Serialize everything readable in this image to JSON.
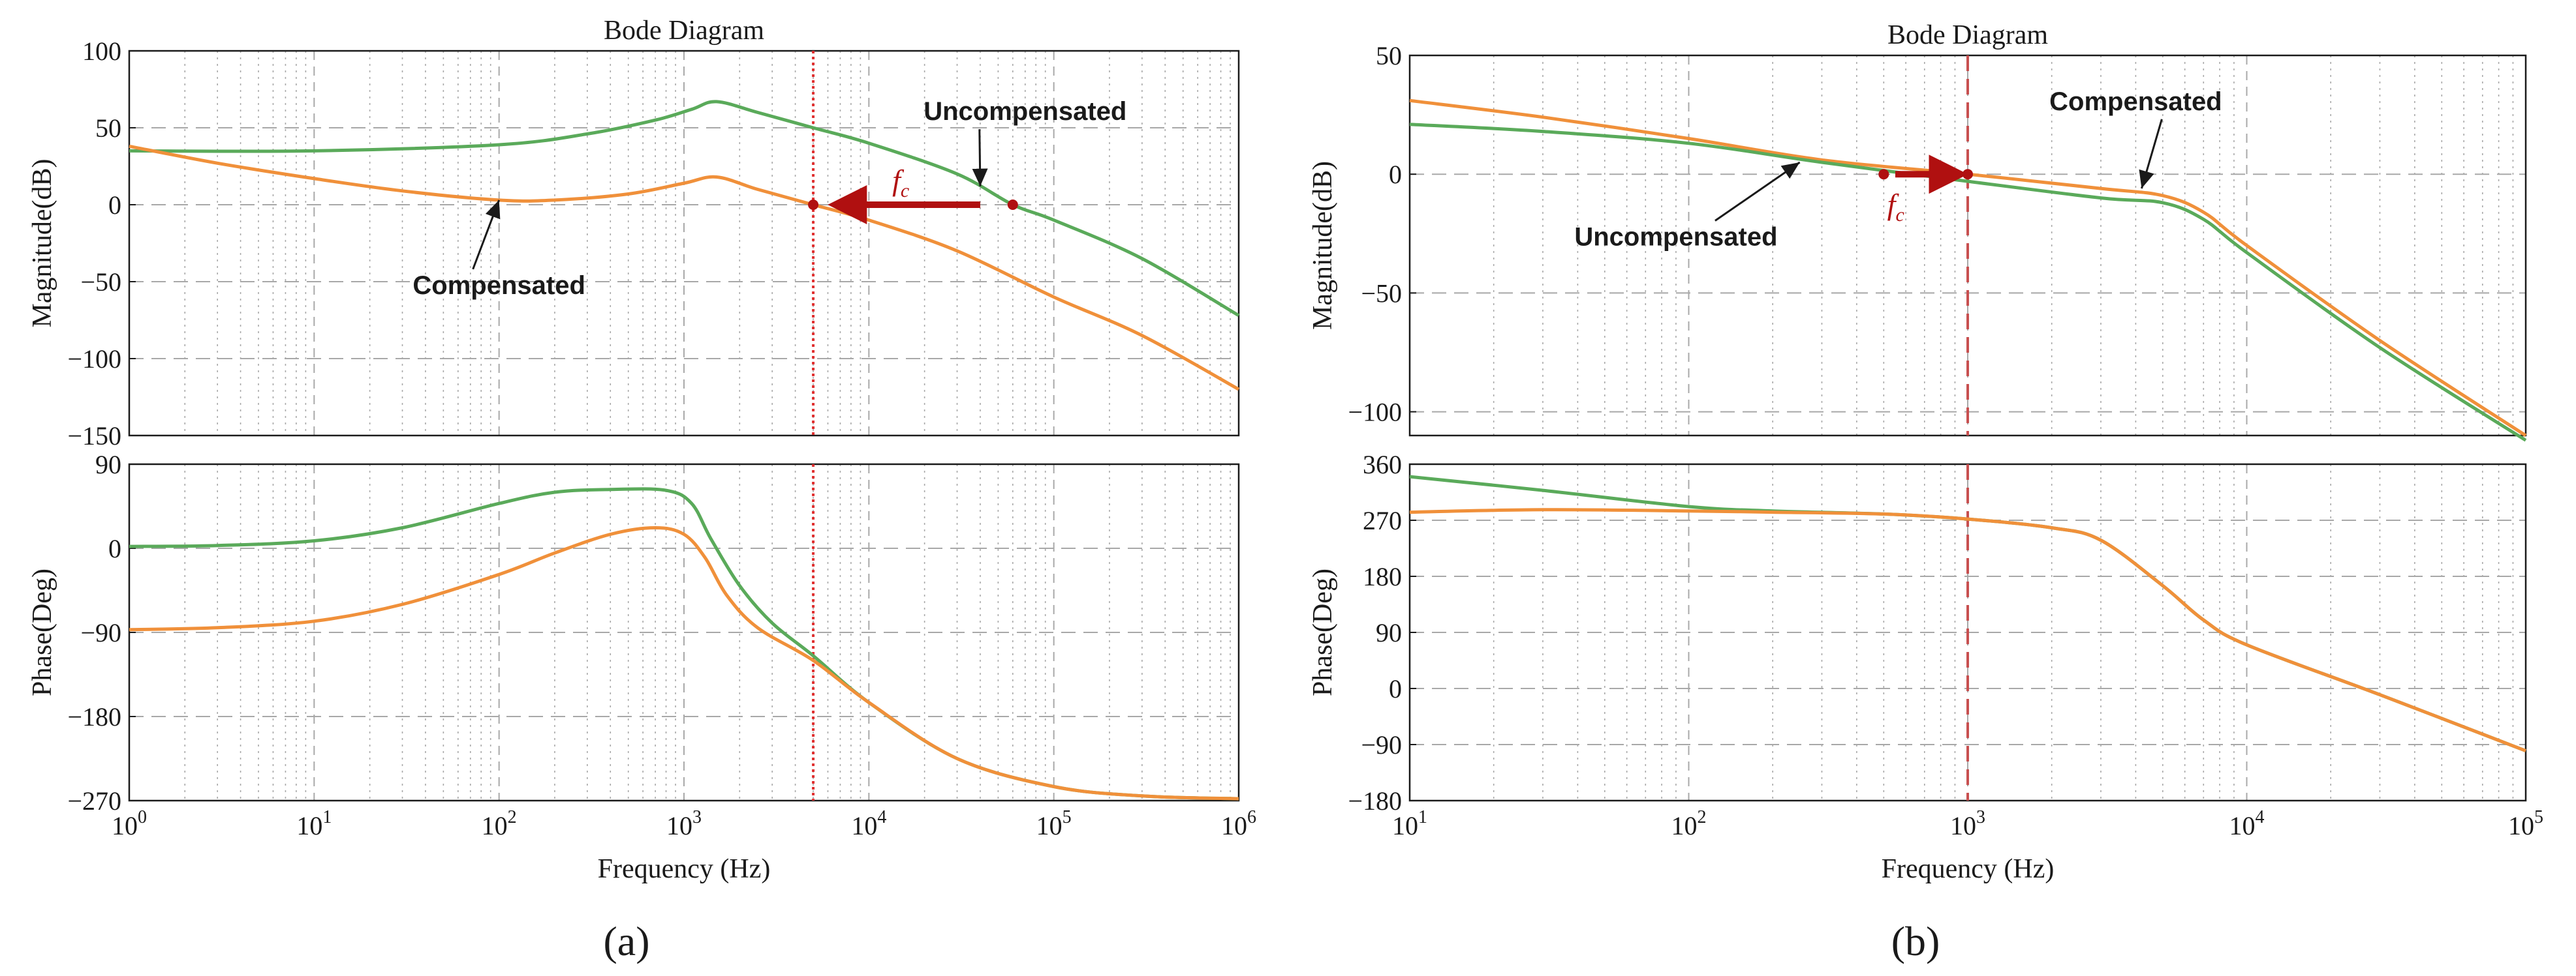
{
  "chart_data": [
    {
      "panel": "(a)",
      "type": "line",
      "subplot": "magnitude",
      "title": "Bode Diagram",
      "xlabel": "",
      "ylabel": "Magnitude(dB)",
      "xscale": "log",
      "xlim": [
        1,
        1000000
      ],
      "ylim": [
        -150,
        100
      ],
      "yticks": [
        100,
        50,
        0,
        -50,
        -100,
        -150
      ],
      "ytick_labels": [
        "100",
        "50",
        "0",
        "−50",
        "−100",
        "−150"
      ],
      "grid": true,
      "series": [
        {
          "name": "Uncompensated",
          "color": "#5aaa5a",
          "x": [
            1,
            10,
            100,
            300,
            700,
            1100,
            1500,
            2500,
            5000,
            10000,
            30000,
            60000,
            100000,
            300000,
            1000000
          ],
          "y": [
            35,
            35,
            39,
            46,
            55,
            62,
            67,
            60,
            50,
            40,
            20,
            0,
            -10,
            -35,
            -72
          ]
        },
        {
          "name": "Compensated",
          "color": "#f0903a",
          "x": [
            1,
            3,
            10,
            30,
            100,
            200,
            500,
            1000,
            1500,
            2500,
            5000,
            10000,
            30000,
            100000,
            300000,
            1000000
          ],
          "y": [
            38,
            27,
            17,
            9,
            3,
            3,
            7,
            14,
            18,
            10,
            0,
            -10,
            -30,
            -60,
            -85,
            -120
          ]
        }
      ],
      "vline": {
        "x": 5000,
        "style": "dotted",
        "color": "#e03030"
      },
      "markers": [
        {
          "x": 5000,
          "y": 0
        },
        {
          "x": 60000,
          "y": 0
        }
      ],
      "arrow": {
        "from": 40000,
        "to": 6500,
        "y": 0,
        "label": "f",
        "sub": "c"
      },
      "annotations": [
        {
          "text": "Uncompensated",
          "x": 70000,
          "y": 55
        },
        {
          "text": "Compensated",
          "x": 100,
          "y": -58
        }
      ]
    },
    {
      "panel": "(a)",
      "type": "line",
      "subplot": "phase",
      "xlabel": "Frequency  (Hz)",
      "ylabel": "Phase(Deg)",
      "xscale": "log",
      "xlim": [
        1,
        1000000
      ],
      "ylim": [
        -270,
        90
      ],
      "yticks": [
        90,
        0,
        -90,
        -180,
        -270
      ],
      "ytick_labels": [
        "90",
        "0",
        "−90",
        "−180",
        "−270"
      ],
      "xtick_labels": [
        {
          "base": "10",
          "exp": "0"
        },
        {
          "base": "10",
          "exp": "1"
        },
        {
          "base": "10",
          "exp": "2"
        },
        {
          "base": "10",
          "exp": "3"
        },
        {
          "base": "10",
          "exp": "4"
        },
        {
          "base": "10",
          "exp": "5"
        },
        {
          "base": "10",
          "exp": "6"
        }
      ],
      "grid": true,
      "series": [
        {
          "name": "Uncompensated",
          "color": "#5aaa5a",
          "x": [
            1,
            3,
            10,
            30,
            100,
            200,
            400,
            800,
            1100,
            1400,
            2000,
            3000,
            5000,
            10000,
            30000,
            100000,
            300000,
            1000000
          ],
          "y": [
            2,
            3,
            8,
            22,
            48,
            60,
            63,
            62,
            48,
            10,
            -40,
            -80,
            -115,
            -165,
            -225,
            -255,
            -265,
            -268
          ]
        },
        {
          "name": "Compensated",
          "color": "#f0903a",
          "x": [
            1,
            3,
            10,
            30,
            100,
            200,
            400,
            700,
            1000,
            1300,
            1700,
            2500,
            5000,
            10000,
            30000,
            100000,
            300000,
            1000000
          ],
          "y": [
            -87,
            -85,
            -78,
            -60,
            -28,
            -5,
            15,
            22,
            15,
            -10,
            -50,
            -85,
            -120,
            -165,
            -225,
            -255,
            -265,
            -268
          ]
        }
      ],
      "vline": {
        "x": 5000,
        "style": "dotted",
        "color": "#e03030"
      }
    },
    {
      "panel": "(b)",
      "type": "line",
      "subplot": "magnitude",
      "title": "Bode Diagram",
      "xlabel": "",
      "ylabel": "Magnitude(dB)",
      "xscale": "log",
      "xlim": [
        10,
        100000
      ],
      "ylim": [
        -110,
        50
      ],
      "yticks": [
        50,
        0,
        -50,
        -100
      ],
      "ytick_labels": [
        "50",
        "0",
        "−50",
        "−100"
      ],
      "grid": true,
      "series": [
        {
          "name": "Compensated",
          "color": "#f0903a",
          "x": [
            10,
            30,
            100,
            300,
            1000,
            3000,
            5000,
            7000,
            10000,
            30000,
            100000
          ],
          "y": [
            31,
            24,
            15,
            6,
            0,
            -6,
            -9,
            -16,
            -30,
            -70,
            -110
          ]
        },
        {
          "name": "Uncompensated",
          "color": "#5aaa5a",
          "x": [
            10,
            30,
            100,
            300,
            1000,
            3000,
            5000,
            7000,
            10000,
            30000,
            100000
          ],
          "y": [
            21,
            18,
            13,
            5,
            -3,
            -10,
            -12,
            -19,
            -33,
            -73,
            -112
          ]
        }
      ],
      "vline": {
        "x": 1000,
        "style": "dashed",
        "color": "#c85050"
      },
      "markers": [
        {
          "x": 500,
          "y": 0
        },
        {
          "x": 1000,
          "y": 0
        }
      ],
      "arrow": {
        "from": 550,
        "to": 950,
        "y": 0,
        "label": "f",
        "sub": "c"
      },
      "annotations": [
        {
          "text": "Compensated",
          "x": 4000,
          "y": 27
        },
        {
          "text": "Uncompensated",
          "x": 90,
          "y": -30
        }
      ]
    },
    {
      "panel": "(b)",
      "type": "line",
      "subplot": "phase",
      "xlabel": "Frequency  (Hz)",
      "ylabel": "Phase(Deg)",
      "xscale": "log",
      "xlim": [
        10,
        100000
      ],
      "ylim": [
        -180,
        360
      ],
      "yticks": [
        360,
        270,
        180,
        90,
        0,
        -90,
        -180
      ],
      "ytick_labels": [
        "360",
        "270",
        "180",
        "90",
        "0",
        "−90",
        "−180"
      ],
      "xtick_labels": [
        {
          "base": "10",
          "exp": "1"
        },
        {
          "base": "10",
          "exp": "2"
        },
        {
          "base": "10",
          "exp": "3"
        },
        {
          "base": "10",
          "exp": "4"
        },
        {
          "base": "10",
          "exp": "5"
        }
      ],
      "grid": true,
      "series": [
        {
          "name": "Uncompensated",
          "color": "#5aaa5a",
          "x": [
            10,
            30,
            100,
            200,
            500,
            1000,
            2000,
            3000,
            5000,
            7000,
            10000,
            30000,
            100000
          ],
          "y": [
            340,
            318,
            292,
            285,
            280,
            272,
            258,
            238,
            165,
            110,
            70,
            -10,
            -100
          ]
        },
        {
          "name": "Compensated",
          "color": "#f0903a",
          "x": [
            10,
            30,
            100,
            200,
            500,
            1000,
            2000,
            3000,
            5000,
            7000,
            10000,
            30000,
            100000
          ],
          "y": [
            283,
            287,
            285,
            283,
            280,
            272,
            258,
            238,
            165,
            110,
            70,
            -10,
            -100
          ]
        }
      ],
      "vline": {
        "x": 1000,
        "style": "dashed",
        "color": "#c85050"
      }
    }
  ],
  "panel_labels": {
    "a": "(a)",
    "b": "(b)"
  }
}
